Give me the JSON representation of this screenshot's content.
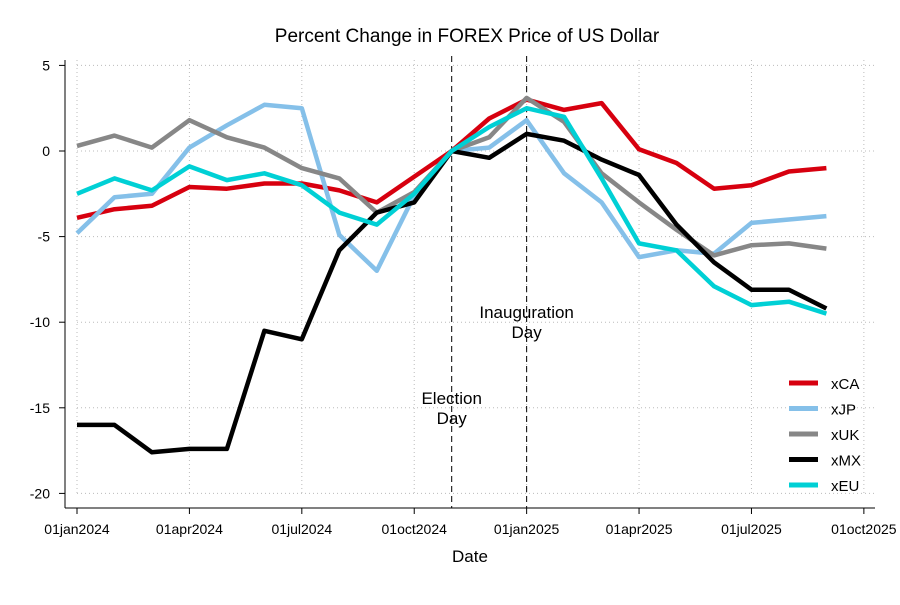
{
  "chart_data": {
    "type": "line",
    "title": "Percent Change in FOREX Price of US Dollar",
    "xlabel": "Date",
    "ylabel": "",
    "ylim": [
      -20,
      5
    ],
    "yticks": [
      5,
      0,
      -5,
      -10,
      -15,
      -20
    ],
    "ytick_labels": [
      "5",
      "0",
      "-5",
      "-10",
      "-15",
      "-20"
    ],
    "xtick_labels": [
      "01jan2024",
      "01apr2024",
      "01jul2024",
      "01oct2024",
      "01jan2025",
      "01apr2025",
      "01jul2025",
      "01oct2025"
    ],
    "xtick_month_index": [
      0,
      3,
      6,
      9,
      12,
      15,
      18,
      21
    ],
    "xlim_month_index": [
      0,
      21
    ],
    "x_month_index": [
      0,
      1,
      2,
      3,
      4,
      5,
      6,
      7,
      8,
      9,
      10,
      11,
      12,
      13,
      14,
      15,
      16,
      17,
      18,
      19,
      20
    ],
    "grid": true,
    "legend_position": "bottom-right",
    "series": [
      {
        "name": "xCA",
        "color": "#d7000f",
        "values": [
          -3.9,
          -3.4,
          -3.2,
          -2.1,
          -2.2,
          -1.9,
          -1.9,
          -2.3,
          -3.0,
          -1.5,
          0,
          1.9,
          3.0,
          2.4,
          2.8,
          0.1,
          -0.7,
          -2.2,
          -2.0,
          -1.2,
          -1.0
        ]
      },
      {
        "name": "xJP",
        "color": "#85c0e9",
        "values": [
          -4.8,
          -2.7,
          -2.5,
          0.2,
          1.5,
          2.7,
          2.5,
          -4.9,
          -7.0,
          -2.6,
          0,
          0.2,
          1.8,
          -1.3,
          -3.0,
          -6.2,
          -5.8,
          -6.0,
          -4.2,
          -4.0,
          -3.8
        ]
      },
      {
        "name": "xUK",
        "color": "#878787",
        "values": [
          0.3,
          0.9,
          0.2,
          1.8,
          0.8,
          0.2,
          -1.0,
          -1.6,
          -3.6,
          -2.4,
          0,
          0.8,
          3.1,
          1.7,
          -1.3,
          -3.0,
          -4.6,
          -6.1,
          -5.5,
          -5.4,
          -5.7
        ]
      },
      {
        "name": "xMX",
        "color": "#000000",
        "values": [
          -16.0,
          -16.0,
          -17.6,
          -17.4,
          -17.4,
          -10.5,
          -11.0,
          -5.8,
          -3.6,
          -3.0,
          0,
          -0.4,
          1.0,
          0.6,
          -0.5,
          -1.4,
          -4.3,
          -6.5,
          -8.1,
          -8.1,
          -9.2
        ]
      },
      {
        "name": "xEU",
        "color": "#00d0d5",
        "values": [
          -2.5,
          -1.6,
          -2.3,
          -0.9,
          -1.7,
          -1.3,
          -2.0,
          -3.6,
          -4.3,
          -2.5,
          0,
          1.4,
          2.5,
          2.0,
          -1.6,
          -5.4,
          -5.8,
          -7.9,
          -9.0,
          -8.8,
          -9.5
        ]
      }
    ],
    "annotations": [
      {
        "month_index": 10,
        "lines": [
          "Election",
          "Day"
        ],
        "label_y": -15
      },
      {
        "month_index": 12,
        "lines": [
          "Inauguration",
          "Day"
        ],
        "label_y": -10
      }
    ]
  }
}
